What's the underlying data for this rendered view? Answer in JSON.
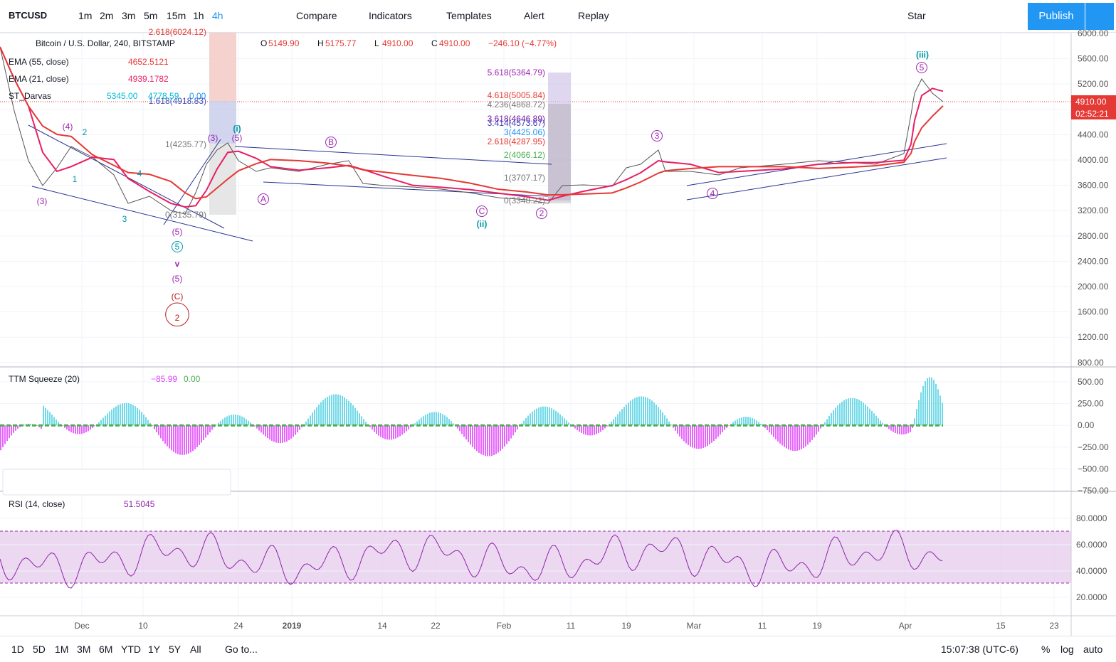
{
  "toolbar": {
    "symbol": "BTCUSD",
    "intervals": [
      "1m",
      "2m",
      "3m",
      "5m",
      "15m",
      "1h",
      "4h"
    ],
    "buttons": [
      "Compare",
      "Indicators",
      "Templates",
      "Alert",
      "Replay"
    ],
    "star": "Star",
    "publish": "Publish"
  },
  "legend": {
    "title": "Bitcoin / U.S. Dollar, 240, BITSTAMP",
    "ohlc": [
      {
        "key": "O",
        "value": "5149.90"
      },
      {
        "key": "H",
        "value": "5175.77"
      },
      {
        "key": "L",
        "value": "4910.00"
      },
      {
        "key": "C",
        "value": "4910.00"
      }
    ],
    "change": "−246.10 (−4.77%)",
    "indicators": [
      {
        "name": "EMA (55, close)",
        "values": [
          "4652.5121"
        ]
      },
      {
        "name": "EMA (21, close)",
        "values": [
          "4939.1782"
        ]
      },
      {
        "name": "ST_Darvas",
        "values": [
          "5345.00",
          "4778.59",
          "0.00"
        ]
      }
    ]
  },
  "price_axis": {
    "labels": [
      "6000.00",
      "5600.00",
      "5200.00",
      "4800.00",
      "4400.00",
      "4000.00",
      "3600.00",
      "3200.00",
      "2800.00",
      "2400.00",
      "2000.00",
      "1600.00",
      "1200.00",
      "800.00"
    ],
    "last_price": "4910.00",
    "countdown": "02:52:21"
  },
  "annotations": [
    "5.618(5364.79)",
    "4.618(5005.84)",
    "4.236(4868.72)",
    "3.618(4646.89)",
    "3.414(4573.67)",
    "3(4425.06)",
    "2.618(4287.95)",
    "2(4066.12)",
    "1(3707.17)",
    "0(3348.22)",
    "2.618(6024.12)",
    "1.618(4918.83)",
    "1(4235.77)",
    "0(3135.79)",
    "(iii)",
    "(i)",
    "(ii)",
    "v",
    "(5)",
    "(C)",
    "2",
    "5",
    "3",
    "4",
    "2",
    "C",
    "A",
    "B",
    "5",
    "(4)",
    "(3)",
    "2",
    "1",
    "3",
    "4",
    "(5)",
    "(3)",
    "(5)"
  ],
  "ttm": {
    "name": "TTM Squeeze (20)",
    "values": [
      "−85.99",
      "0.00"
    ],
    "axis": [
      "500.00",
      "250.00",
      "0.00",
      "−250.00",
      "−500.00",
      "−750.00"
    ]
  },
  "rsi": {
    "name": "RSI (14, close)",
    "values": [
      "51.5045"
    ],
    "axis": [
      "80.0000",
      "60.0000",
      "40.0000",
      "20.0000"
    ]
  },
  "time_axis": [
    "Dec",
    "10",
    "24",
    "2019",
    "14",
    "22",
    "Feb",
    "11",
    "19",
    "Mar",
    "11",
    "19",
    "Apr",
    "15",
    "23"
  ],
  "bottom_bar": {
    "ranges": [
      "1D",
      "5D",
      "1M",
      "3M",
      "6M",
      "YTD",
      "1Y",
      "5Y",
      "All"
    ],
    "goto": "Go to...",
    "clock": "15:07:38 (UTC-6)",
    "options": [
      "%",
      "log",
      "auto"
    ]
  }
}
